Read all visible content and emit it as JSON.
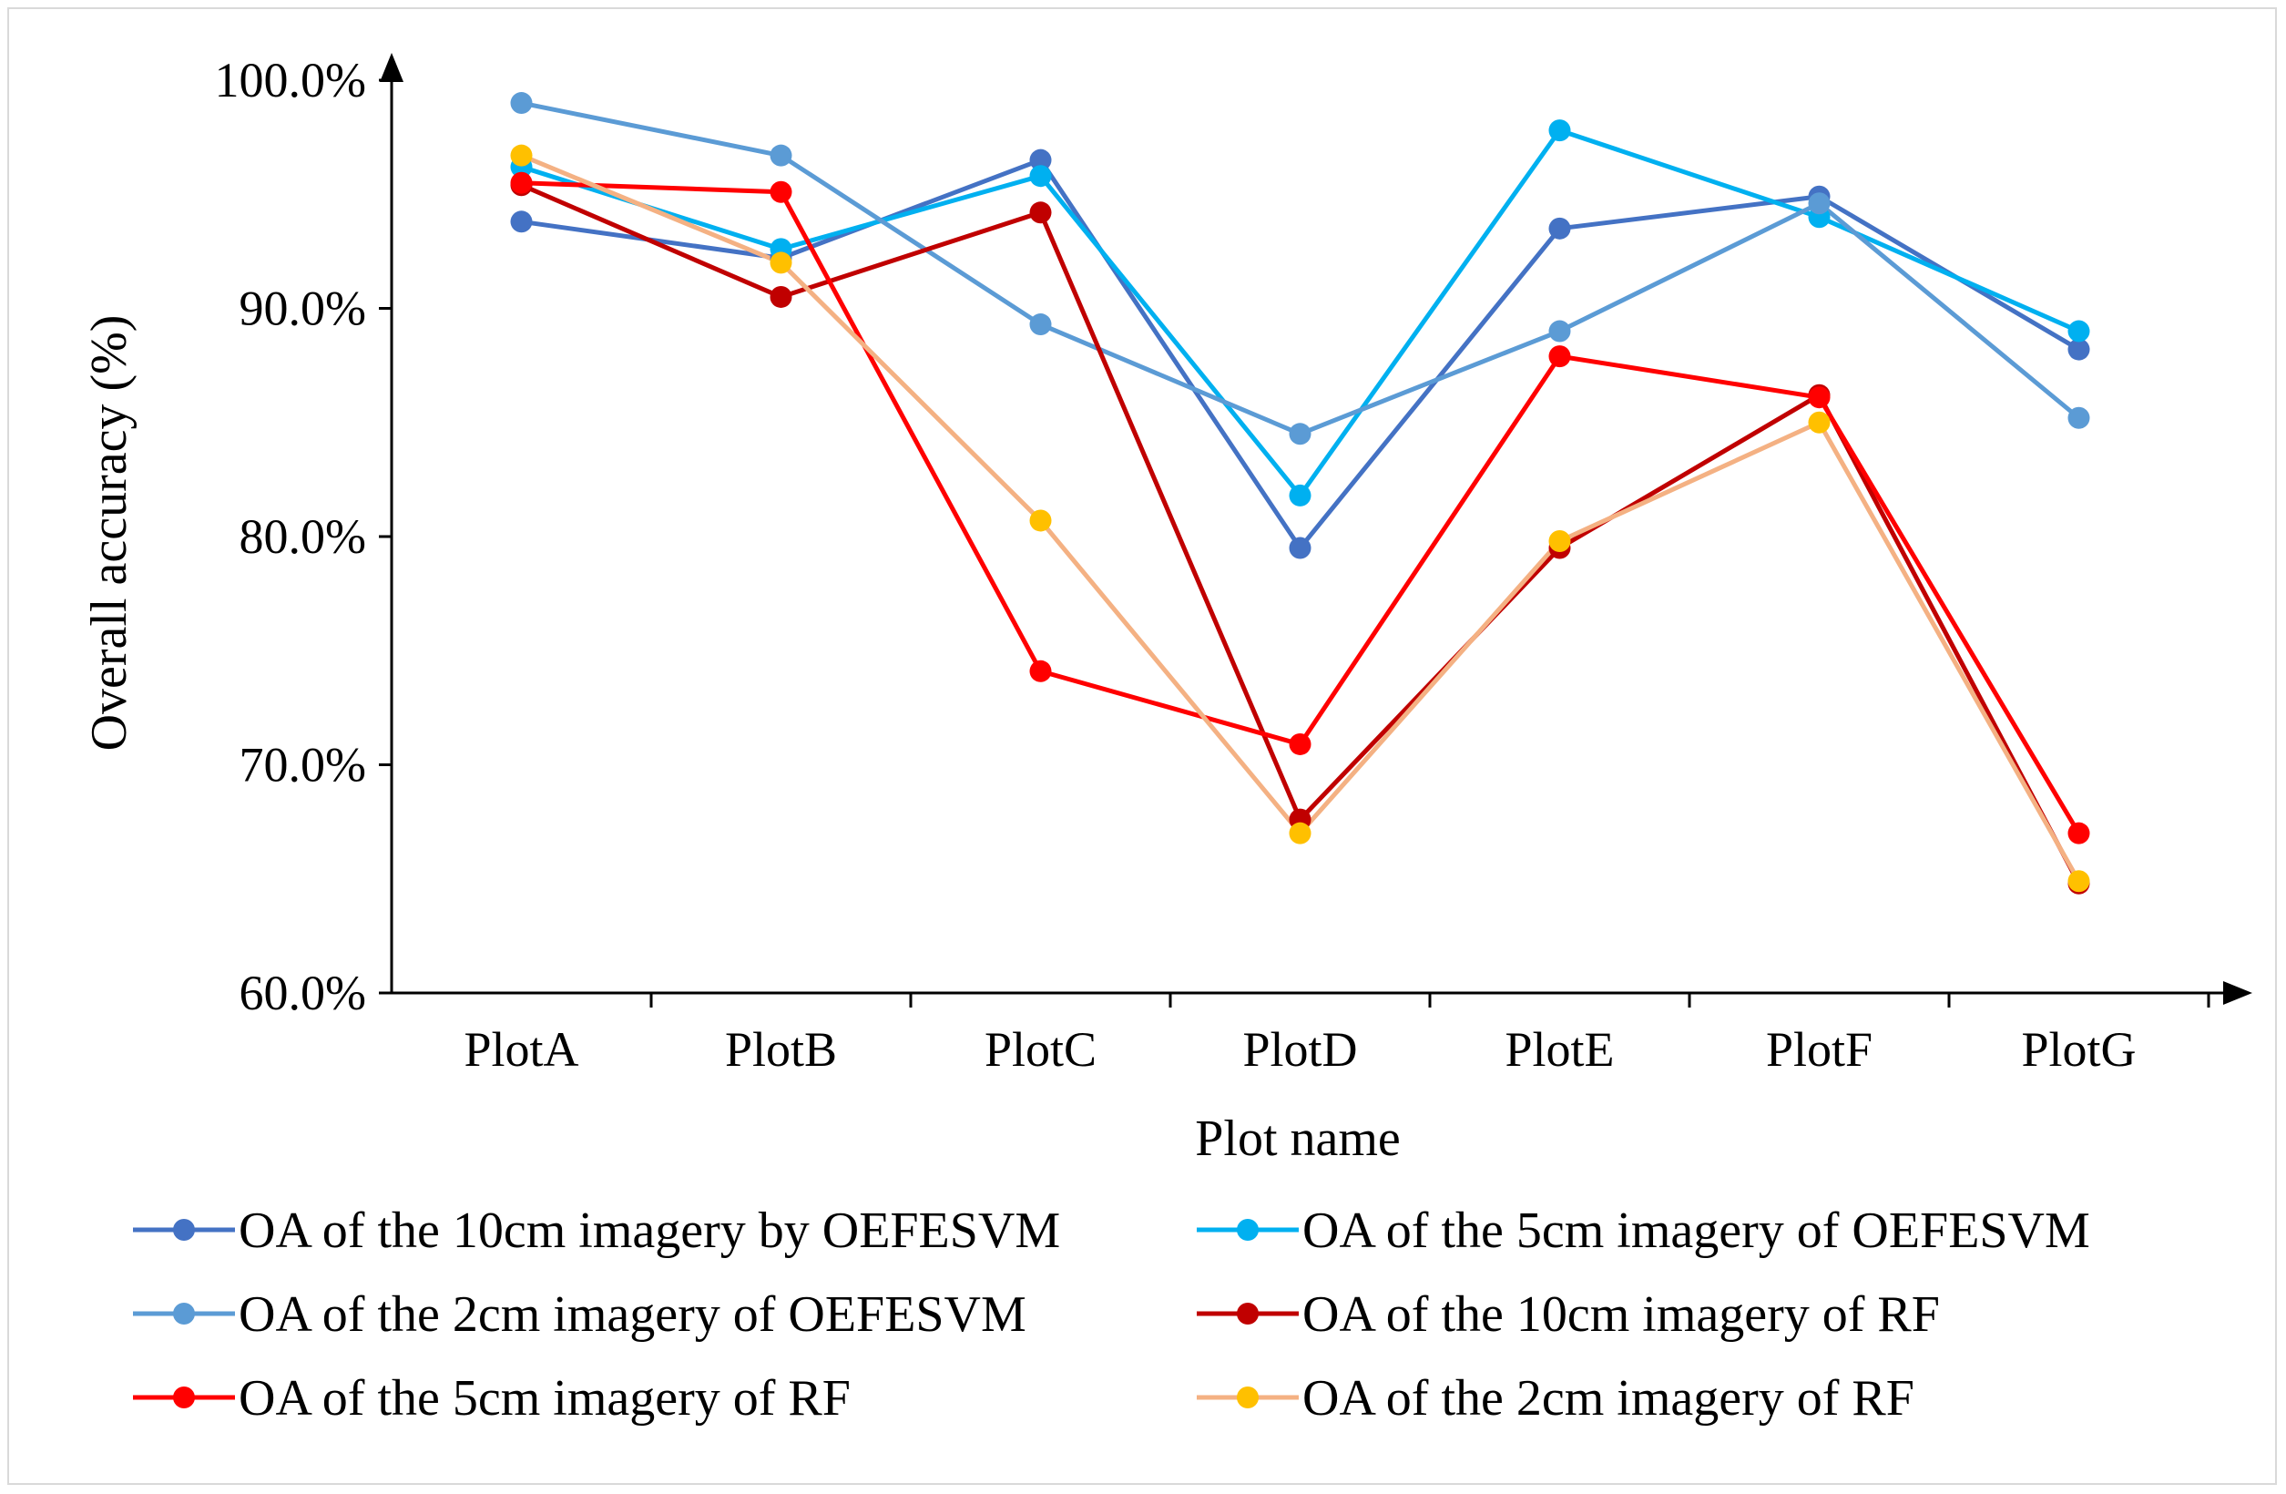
{
  "chart_data": {
    "type": "line",
    "title": "",
    "xlabel": "Plot name",
    "ylabel": "Overall accuracy (%)",
    "categories": [
      "PlotA",
      "PlotB",
      "PlotC",
      "PlotD",
      "PlotE",
      "PlotF",
      "PlotG"
    ],
    "ylim": [
      60,
      100
    ],
    "yticks": [
      60,
      70,
      80,
      90,
      100
    ],
    "ytick_labels": [
      "60.0%",
      "70.0%",
      "80.0%",
      "90.0%",
      "100.0%"
    ],
    "grid": false,
    "legend_position": "bottom",
    "series": [
      {
        "name": "OA of the 10cm imagery by OEFESVM",
        "color": "#4472c4",
        "values": [
          93.8,
          92.2,
          96.5,
          79.5,
          93.5,
          94.9,
          88.2
        ]
      },
      {
        "name": "OA of the 5cm imagery of OEFESVM",
        "color": "#00b0f0",
        "values": [
          96.2,
          92.6,
          95.8,
          81.8,
          97.8,
          94.0,
          89.0
        ]
      },
      {
        "name": "OA of the 2cm imagery of OEFESVM",
        "color": "#5b9bd5",
        "values": [
          99.0,
          96.7,
          89.3,
          84.5,
          89.0,
          94.6,
          85.2
        ]
      },
      {
        "name": "OA of the 10cm imagery of RF",
        "color": "#c00000",
        "values": [
          95.4,
          90.5,
          94.2,
          67.6,
          79.5,
          86.2,
          64.8
        ]
      },
      {
        "name": "OA of the 5cm imagery of RF",
        "color": "#ff0000",
        "values": [
          95.5,
          95.1,
          74.1,
          70.9,
          87.9,
          86.1,
          67.0
        ]
      },
      {
        "name": "OA of the 2cm imagery of RF",
        "marker_color": "#ffc000",
        "color": "#f4b183",
        "values": [
          96.7,
          92.0,
          80.7,
          67.0,
          79.8,
          85.0,
          64.9
        ]
      }
    ]
  }
}
